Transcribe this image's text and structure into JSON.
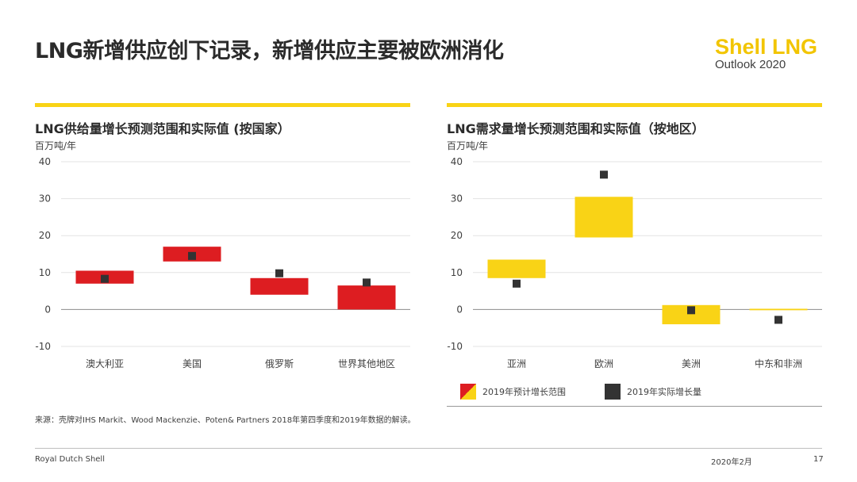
{
  "page": {
    "title": "LNG新增供应创下记录，新增供应主要被欧洲消化",
    "brand_line1": "Shell LNG",
    "brand_line2": "Outlook 2020",
    "source": "来源：壳牌对IHS Markit、Wood Mackenzie、Poten& Partners 2018年第四季度和2019年数据的解读。",
    "footer_left": "Royal Dutch Shell",
    "footer_date": "2020年2月",
    "footer_page": "17"
  },
  "legend": {
    "range_label": "2019年预计增长范围",
    "actual_label": "2019年实际增长量"
  },
  "colors": {
    "red": "#dd1d21",
    "yellow": "#f9d316",
    "marker": "#333333",
    "accent": "#f9d316"
  },
  "chart_data": [
    {
      "type": "bar",
      "subtype": "floating-range-with-marker",
      "title": "LNG供给量增长预测范围和实际值 (按国家）",
      "ylabel": "百万吨/年",
      "xlabel": "",
      "ylim": [
        -10,
        40
      ],
      "yticks": [
        40,
        30,
        20,
        10,
        0,
        -10
      ],
      "grid": true,
      "categories": [
        "澳大利亚",
        "美国",
        "俄罗斯",
        "世界其他地区"
      ],
      "series": [
        {
          "name": "2019年预计增长范围",
          "low": [
            7,
            13,
            4,
            0
          ],
          "high": [
            10.5,
            17,
            8.5,
            6.5
          ]
        },
        {
          "name": "2019年实际增长量",
          "values": [
            8.3,
            14.5,
            9.8,
            7.3
          ]
        }
      ]
    },
    {
      "type": "bar",
      "subtype": "floating-range-with-marker",
      "title": "LNG需求量增长预测范围和实际值（按地区）",
      "ylabel": "百万吨/年",
      "xlabel": "",
      "ylim": [
        -10,
        40
      ],
      "yticks": [
        40,
        30,
        20,
        10,
        0,
        -10
      ],
      "grid": true,
      "categories": [
        "亚洲",
        "欧洲",
        "美洲",
        "中东和非洲"
      ],
      "series": [
        {
          "name": "2019年预计增长范围",
          "low": [
            8.5,
            19.5,
            -4,
            -0.2
          ],
          "high": [
            13.5,
            30.5,
            1.2,
            0.2
          ]
        },
        {
          "name": "2019年实际增长量",
          "values": [
            7,
            36.5,
            -0.2,
            -2.8
          ]
        }
      ]
    }
  ]
}
